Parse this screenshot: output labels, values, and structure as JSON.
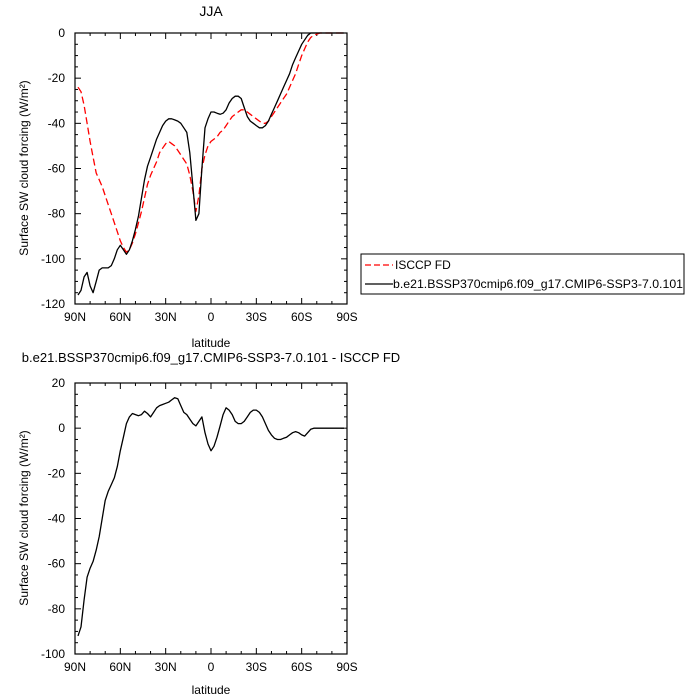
{
  "chart_data": [
    {
      "type": "line",
      "title": "JJA",
      "xlabel": "latitude",
      "ylabel": "Surface SW cloud forcing (W/m²)",
      "xlim": [
        90,
        -90
      ],
      "ylim": [
        -120,
        0
      ],
      "xticks": [
        {
          "value": 90,
          "label": "90N"
        },
        {
          "value": 60,
          "label": "60N"
        },
        {
          "value": 30,
          "label": "30N"
        },
        {
          "value": 0,
          "label": "0"
        },
        {
          "value": -30,
          "label": "30S"
        },
        {
          "value": -60,
          "label": "60S"
        },
        {
          "value": -90,
          "label": "90S"
        }
      ],
      "yticks": [
        {
          "value": 0,
          "label": "0"
        },
        {
          "value": -20,
          "label": "-20"
        },
        {
          "value": -40,
          "label": "-40"
        },
        {
          "value": -60,
          "label": "-60"
        },
        {
          "value": -80,
          "label": "-80"
        },
        {
          "value": -100,
          "label": "-100"
        },
        {
          "value": -120,
          "label": "-120"
        }
      ],
      "legend_position": "right",
      "series": [
        {
          "name": "ISCCP FD",
          "color": "#ff0000",
          "dash": "dashed",
          "x": [
            88,
            86,
            84,
            82,
            80,
            78,
            76,
            74,
            72,
            70,
            68,
            66,
            64,
            62,
            60,
            58,
            56,
            54,
            52,
            50,
            48,
            46,
            44,
            42,
            40,
            38,
            36,
            34,
            32,
            30,
            28,
            26,
            24,
            22,
            20,
            18,
            16,
            14,
            12,
            10,
            8,
            6,
            4,
            2,
            0,
            -2,
            -4,
            -6,
            -8,
            -10,
            -12,
            -14,
            -16,
            -18,
            -20,
            -22,
            -24,
            -26,
            -28,
            -30,
            -32,
            -34,
            -36,
            -38,
            -40,
            -42,
            -44,
            -46,
            -48,
            -50,
            -52,
            -54,
            -56,
            -58,
            -60,
            -62,
            -64,
            -66,
            -68,
            -70,
            -72,
            -74,
            -76,
            -78,
            -80,
            -82,
            -84,
            -86,
            -88
          ],
          "y": [
            -24,
            -26,
            -32,
            -40,
            -48,
            -55,
            -62,
            -65,
            -68,
            -72,
            -76,
            -80,
            -84,
            -88,
            -92,
            -95,
            -97,
            -96,
            -93,
            -89,
            -84,
            -79,
            -73,
            -67,
            -63,
            -60,
            -57,
            -53,
            -51,
            -49,
            -48,
            -49,
            -50,
            -52,
            -54,
            -56,
            -58,
            -63,
            -70,
            -79,
            -72,
            -60,
            -54,
            -50,
            -48,
            -47,
            -46,
            -44,
            -43,
            -41,
            -39,
            -37,
            -36,
            -35,
            -34,
            -34,
            -35,
            -36,
            -37,
            -38,
            -39,
            -40,
            -40,
            -39,
            -37,
            -35,
            -33,
            -31,
            -29,
            -27,
            -24,
            -21,
            -18,
            -14,
            -10,
            -7,
            -4,
            -2,
            -1,
            -0.5,
            0,
            0,
            0,
            0,
            0,
            0,
            0,
            0,
            0
          ]
        },
        {
          "name": "b.e21.BSSP370cmip6.f09_g17.CMIP6-SSP3-7.0.101",
          "color": "#000000",
          "dash": "solid",
          "x": [
            88,
            86,
            84,
            82,
            80,
            78,
            76,
            74,
            72,
            70,
            68,
            66,
            64,
            62,
            60,
            58,
            56,
            54,
            52,
            50,
            48,
            46,
            44,
            42,
            40,
            38,
            36,
            34,
            32,
            30,
            28,
            26,
            24,
            22,
            20,
            18,
            16,
            14,
            12,
            10,
            8,
            6,
            4,
            2,
            0,
            -2,
            -4,
            -6,
            -8,
            -10,
            -12,
            -14,
            -16,
            -18,
            -20,
            -22,
            -24,
            -26,
            -28,
            -30,
            -32,
            -34,
            -36,
            -38,
            -40,
            -42,
            -44,
            -46,
            -48,
            -50,
            -52,
            -54,
            -56,
            -58,
            -60,
            -62,
            -64,
            -66,
            -68,
            -70,
            -72,
            -74,
            -76,
            -78,
            -80,
            -82,
            -84,
            -86,
            -88
          ],
          "y": [
            -116,
            -114,
            -108,
            -106,
            -112,
            -115,
            -110,
            -105,
            -104,
            -104,
            -104,
            -103,
            -100,
            -96,
            -94,
            -96,
            -98,
            -96,
            -92,
            -87,
            -81,
            -73,
            -65,
            -59,
            -55,
            -51,
            -47,
            -44,
            -41,
            -39,
            -38,
            -38,
            -38.5,
            -39,
            -40,
            -42,
            -44,
            -53,
            -68,
            -83,
            -80,
            -60,
            -42,
            -38,
            -35,
            -35,
            -35.5,
            -36,
            -35.5,
            -34,
            -31,
            -29,
            -28,
            -28,
            -29,
            -33,
            -37,
            -39,
            -40,
            -41,
            -42,
            -42,
            -41,
            -39,
            -36,
            -33,
            -30,
            -27,
            -24,
            -21,
            -18,
            -14,
            -11,
            -8,
            -5,
            -3,
            -1,
            0,
            0,
            0,
            0,
            0,
            0,
            0,
            0,
            0,
            0,
            0,
            0
          ]
        }
      ]
    },
    {
      "type": "line",
      "title": "b.e21.BSSP370cmip6.f09_g17.CMIP6-SSP3-7.0.101 - ISCCP FD",
      "xlabel": "latitude",
      "ylabel": "Surface SW cloud forcing (W/m²)",
      "xlim": [
        90,
        -90
      ],
      "ylim": [
        -100,
        20
      ],
      "xticks": [
        {
          "value": 90,
          "label": "90N"
        },
        {
          "value": 60,
          "label": "60N"
        },
        {
          "value": 30,
          "label": "30N"
        },
        {
          "value": 0,
          "label": "0"
        },
        {
          "value": -30,
          "label": "30S"
        },
        {
          "value": -60,
          "label": "60S"
        },
        {
          "value": -90,
          "label": "90S"
        }
      ],
      "yticks": [
        {
          "value": 20,
          "label": "20"
        },
        {
          "value": 0,
          "label": "0"
        },
        {
          "value": -20,
          "label": "-20"
        },
        {
          "value": -40,
          "label": "-40"
        },
        {
          "value": -60,
          "label": "-60"
        },
        {
          "value": -80,
          "label": "-80"
        },
        {
          "value": -100,
          "label": "-100"
        }
      ],
      "series": [
        {
          "name": "",
          "color": "#000000",
          "dash": "solid",
          "x": [
            88,
            86,
            84,
            82,
            80,
            78,
            76,
            74,
            72,
            70,
            68,
            66,
            64,
            62,
            60,
            58,
            56,
            54,
            52,
            50,
            48,
            46,
            44,
            42,
            40,
            38,
            36,
            34,
            32,
            30,
            28,
            26,
            24,
            22,
            20,
            18,
            16,
            14,
            12,
            10,
            8,
            6,
            4,
            2,
            0,
            -2,
            -4,
            -6,
            -8,
            -10,
            -12,
            -14,
            -16,
            -18,
            -20,
            -22,
            -24,
            -26,
            -28,
            -30,
            -32,
            -34,
            -36,
            -38,
            -40,
            -42,
            -44,
            -46,
            -48,
            -50,
            -52,
            -54,
            -56,
            -58,
            -60,
            -62,
            -64,
            -66,
            -68,
            -70,
            -72,
            -74,
            -76,
            -78,
            -80,
            -82,
            -84,
            -86,
            -88
          ],
          "y": [
            -92,
            -88,
            -76,
            -66,
            -62,
            -59,
            -54,
            -48,
            -40,
            -32,
            -28,
            -25,
            -22,
            -17,
            -10,
            -4,
            2,
            5,
            6.5,
            6,
            5.5,
            6,
            7.5,
            6.5,
            5,
            7,
            9,
            10,
            10.5,
            11,
            11.5,
            12.5,
            13.5,
            13,
            10,
            7,
            6,
            4,
            2,
            1,
            3,
            5,
            -2,
            -7,
            -10,
            -8,
            -4,
            1,
            6,
            9,
            8,
            6,
            3,
            2,
            2,
            3,
            5,
            7,
            8,
            8,
            7,
            5,
            2,
            -1,
            -3,
            -4.5,
            -5,
            -5,
            -4.5,
            -4,
            -3,
            -2,
            -1.5,
            -2,
            -3,
            -3.5,
            -2,
            -0.5,
            0,
            0,
            0,
            0,
            0,
            0,
            0,
            0,
            0,
            0,
            0
          ]
        }
      ]
    }
  ]
}
